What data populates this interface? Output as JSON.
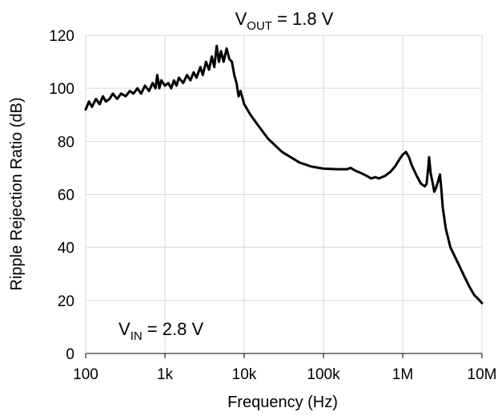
{
  "chart_data": {
    "type": "line",
    "title": {
      "main": "V",
      "subscript": "OUT",
      "rest": " = 1.8 V"
    },
    "xlabel": "Frequency (Hz)",
    "ylabel": "Ripple Rejection Ratio (dB)",
    "x_scale": "log",
    "xlim": [
      100,
      10000000
    ],
    "ylim": [
      0,
      120
    ],
    "x_ticks": [
      {
        "value": 100,
        "label": "100"
      },
      {
        "value": 1000,
        "label": "1k"
      },
      {
        "value": 10000,
        "label": "10k"
      },
      {
        "value": 100000,
        "label": "100k"
      },
      {
        "value": 1000000,
        "label": "1M"
      },
      {
        "value": 10000000,
        "label": "10M"
      }
    ],
    "y_ticks": [
      0,
      20,
      40,
      60,
      80,
      100,
      120
    ],
    "grid": true,
    "annotation": {
      "main": "V",
      "subscript": "IN",
      "rest": " = 2.8 V"
    },
    "line_color": "#000000",
    "series": [
      {
        "points": [
          [
            100,
            92
          ],
          [
            110,
            95
          ],
          [
            120,
            93
          ],
          [
            135,
            96
          ],
          [
            150,
            94
          ],
          [
            165,
            97
          ],
          [
            180,
            95
          ],
          [
            200,
            96
          ],
          [
            220,
            98
          ],
          [
            250,
            96
          ],
          [
            280,
            98
          ],
          [
            320,
            97
          ],
          [
            360,
            99
          ],
          [
            400,
            98
          ],
          [
            450,
            100
          ],
          [
            500,
            98
          ],
          [
            560,
            101
          ],
          [
            630,
            99
          ],
          [
            700,
            102
          ],
          [
            760,
            100
          ],
          [
            800,
            105
          ],
          [
            850,
            100
          ],
          [
            900,
            103
          ],
          [
            1000,
            101
          ],
          [
            1100,
            102
          ],
          [
            1200,
            100
          ],
          [
            1300,
            103
          ],
          [
            1400,
            101
          ],
          [
            1500,
            104
          ],
          [
            1700,
            102
          ],
          [
            1900,
            105
          ],
          [
            2100,
            103
          ],
          [
            2300,
            106
          ],
          [
            2500,
            104
          ],
          [
            2800,
            108
          ],
          [
            3000,
            105
          ],
          [
            3300,
            110
          ],
          [
            3600,
            107
          ],
          [
            3900,
            112
          ],
          [
            4200,
            108
          ],
          [
            4500,
            116
          ],
          [
            4800,
            110
          ],
          [
            5100,
            114
          ],
          [
            5500,
            110
          ],
          [
            6000,
            115
          ],
          [
            6500,
            111
          ],
          [
            7000,
            110
          ],
          [
            7500,
            105
          ],
          [
            8000,
            102
          ],
          [
            8500,
            97
          ],
          [
            9000,
            99
          ],
          [
            10000,
            94
          ],
          [
            12000,
            90
          ],
          [
            15000,
            86
          ],
          [
            20000,
            81
          ],
          [
            30000,
            76
          ],
          [
            50000,
            72
          ],
          [
            70000,
            70.5
          ],
          [
            100000,
            69.7
          ],
          [
            150000,
            69.5
          ],
          [
            200000,
            69.5
          ],
          [
            220000,
            70
          ],
          [
            250000,
            69
          ],
          [
            300000,
            68
          ],
          [
            350000,
            67
          ],
          [
            400000,
            66
          ],
          [
            450000,
            66.5
          ],
          [
            500000,
            66
          ],
          [
            600000,
            67
          ],
          [
            700000,
            68.5
          ],
          [
            800000,
            70.5
          ],
          [
            900000,
            73
          ],
          [
            1000000,
            75
          ],
          [
            1100000,
            76
          ],
          [
            1200000,
            74
          ],
          [
            1300000,
            71
          ],
          [
            1500000,
            67
          ],
          [
            1700000,
            64
          ],
          [
            1900000,
            63
          ],
          [
            2000000,
            64
          ],
          [
            2100000,
            70
          ],
          [
            2150000,
            74
          ],
          [
            2250000,
            68
          ],
          [
            2400000,
            64
          ],
          [
            2500000,
            61
          ],
          [
            2600000,
            62
          ],
          [
            2800000,
            65
          ],
          [
            2950000,
            67.5
          ],
          [
            3050000,
            63
          ],
          [
            3200000,
            55
          ],
          [
            3500000,
            47
          ],
          [
            4000000,
            40
          ],
          [
            5000000,
            34
          ],
          [
            6000000,
            29
          ],
          [
            7000000,
            25
          ],
          [
            8000000,
            22
          ],
          [
            9000000,
            20.5
          ],
          [
            10000000,
            19
          ]
        ]
      }
    ]
  }
}
